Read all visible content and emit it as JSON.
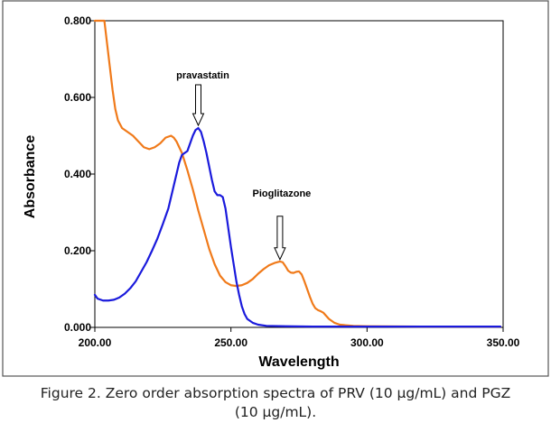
{
  "caption": {
    "line1": "Figure 2. Zero order absorption spectra of PRV (10 µg/mL) and PGZ",
    "line2": "(10 µg/mL)."
  },
  "colors": {
    "prv_series": "#1a1adc",
    "pgz_series": "#f07a1a",
    "axis": "#000000",
    "frame": "#555555"
  },
  "chart_data": {
    "type": "line",
    "xlabel": "Wavelength",
    "ylabel": "Absorbance",
    "xlim": [
      200,
      350
    ],
    "ylim": [
      0,
      0.8
    ],
    "x_ticks": [
      "200.00",
      "250.00",
      "300.00",
      "350.00"
    ],
    "y_ticks": [
      "0.000",
      "0.200",
      "0.400",
      "0.600",
      "0.800"
    ],
    "grid": false,
    "annotations": [
      {
        "text": "pravastatin",
        "x": 238,
        "y": 0.52
      },
      {
        "text": "Pioglitazone",
        "x": 268,
        "y": 0.17
      }
    ],
    "series": [
      {
        "key": "prv",
        "color": "#1a1adc",
        "points": [
          [
            200,
            0.085
          ],
          [
            201,
            0.075
          ],
          [
            203,
            0.07
          ],
          [
            205,
            0.07
          ],
          [
            207,
            0.072
          ],
          [
            209,
            0.078
          ],
          [
            211,
            0.088
          ],
          [
            213,
            0.102
          ],
          [
            215,
            0.12
          ],
          [
            217,
            0.145
          ],
          [
            219,
            0.17
          ],
          [
            221,
            0.2
          ],
          [
            223,
            0.232
          ],
          [
            225,
            0.27
          ],
          [
            227,
            0.31
          ],
          [
            229,
            0.37
          ],
          [
            231,
            0.43
          ],
          [
            232,
            0.45
          ],
          [
            233,
            0.455
          ],
          [
            234,
            0.46
          ],
          [
            235,
            0.48
          ],
          [
            236,
            0.5
          ],
          [
            237,
            0.515
          ],
          [
            238,
            0.52
          ],
          [
            239,
            0.51
          ],
          [
            240,
            0.485
          ],
          [
            241,
            0.455
          ],
          [
            242,
            0.42
          ],
          [
            243,
            0.385
          ],
          [
            244,
            0.355
          ],
          [
            245,
            0.345
          ],
          [
            246,
            0.345
          ],
          [
            247,
            0.34
          ],
          [
            248,
            0.31
          ],
          [
            249,
            0.26
          ],
          [
            250,
            0.21
          ],
          [
            251,
            0.165
          ],
          [
            252,
            0.12
          ],
          [
            253,
            0.085
          ],
          [
            254,
            0.055
          ],
          [
            255,
            0.035
          ],
          [
            256,
            0.022
          ],
          [
            258,
            0.012
          ],
          [
            260,
            0.007
          ],
          [
            263,
            0.004
          ],
          [
            270,
            0.003
          ],
          [
            280,
            0.002
          ],
          [
            300,
            0.002
          ],
          [
            320,
            0.002
          ],
          [
            349,
            0.002
          ]
        ]
      },
      {
        "key": "pgz",
        "color": "#f07a1a",
        "points": [
          [
            200,
            0.8
          ],
          [
            202,
            0.8
          ],
          [
            203.5,
            0.8
          ],
          [
            204.5,
            0.74
          ],
          [
            205.5,
            0.68
          ],
          [
            206.5,
            0.62
          ],
          [
            207.5,
            0.57
          ],
          [
            208.5,
            0.54
          ],
          [
            210,
            0.52
          ],
          [
            212,
            0.51
          ],
          [
            214,
            0.5
          ],
          [
            216,
            0.485
          ],
          [
            218,
            0.47
          ],
          [
            220,
            0.465
          ],
          [
            222,
            0.47
          ],
          [
            224,
            0.48
          ],
          [
            226,
            0.495
          ],
          [
            228,
            0.5
          ],
          [
            229,
            0.495
          ],
          [
            230,
            0.485
          ],
          [
            232,
            0.455
          ],
          [
            234,
            0.41
          ],
          [
            236,
            0.36
          ],
          [
            238,
            0.305
          ],
          [
            240,
            0.255
          ],
          [
            242,
            0.205
          ],
          [
            244,
            0.165
          ],
          [
            246,
            0.135
          ],
          [
            248,
            0.118
          ],
          [
            250,
            0.11
          ],
          [
            252,
            0.108
          ],
          [
            254,
            0.11
          ],
          [
            256,
            0.116
          ],
          [
            258,
            0.126
          ],
          [
            260,
            0.14
          ],
          [
            262,
            0.152
          ],
          [
            264,
            0.162
          ],
          [
            266,
            0.168
          ],
          [
            268,
            0.172
          ],
          [
            269,
            0.17
          ],
          [
            270,
            0.16
          ],
          [
            271,
            0.148
          ],
          [
            272,
            0.143
          ],
          [
            273,
            0.142
          ],
          [
            274,
            0.145
          ],
          [
            275,
            0.146
          ],
          [
            276,
            0.138
          ],
          [
            277,
            0.12
          ],
          [
            278,
            0.1
          ],
          [
            279,
            0.08
          ],
          [
            280,
            0.062
          ],
          [
            281,
            0.05
          ],
          [
            282,
            0.045
          ],
          [
            283,
            0.042
          ],
          [
            284,
            0.038
          ],
          [
            285,
            0.03
          ],
          [
            286,
            0.022
          ],
          [
            288,
            0.012
          ],
          [
            290,
            0.007
          ],
          [
            295,
            0.004
          ],
          [
            300,
            0.003
          ],
          [
            320,
            0.002
          ],
          [
            349,
            0.002
          ]
        ]
      }
    ]
  }
}
